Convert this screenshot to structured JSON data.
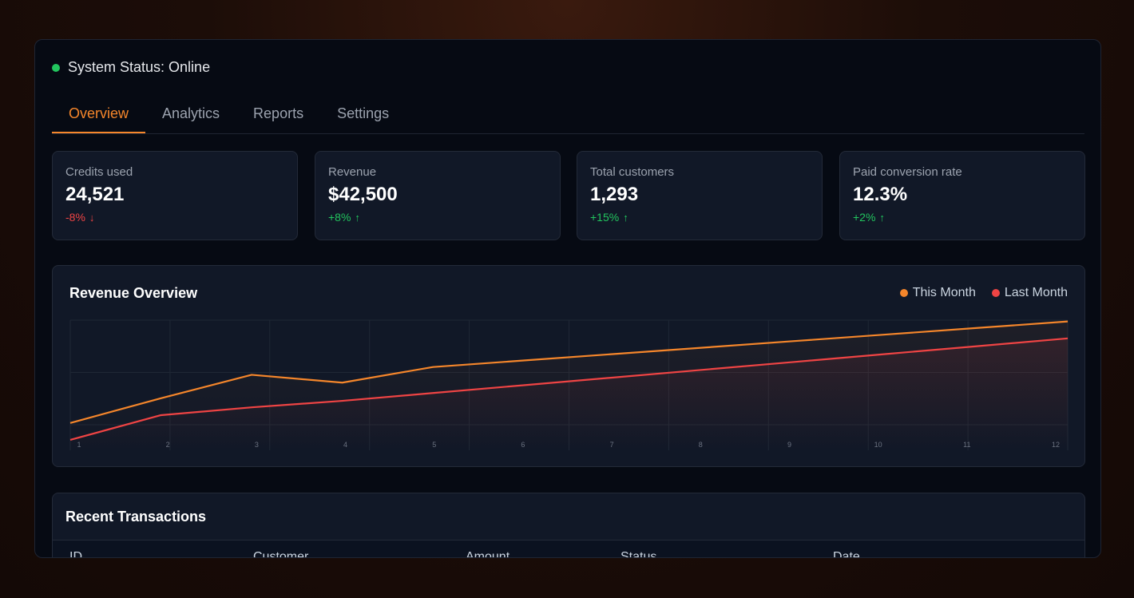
{
  "status": {
    "text": "System Status: Online",
    "color": "#22c55e"
  },
  "tabs": [
    {
      "label": "Overview",
      "active": true
    },
    {
      "label": "Analytics",
      "active": false
    },
    {
      "label": "Reports",
      "active": false
    },
    {
      "label": "Settings",
      "active": false
    }
  ],
  "cards": [
    {
      "label": "Credits used",
      "value": "24,521",
      "delta": "-8%",
      "direction": "down"
    },
    {
      "label": "Revenue",
      "value": "$42,500",
      "delta": "+8%",
      "direction": "up"
    },
    {
      "label": "Total customers",
      "value": "1,293",
      "delta": "+15%",
      "direction": "up"
    },
    {
      "label": "Paid conversion rate",
      "value": "12.3%",
      "delta": "+2%",
      "direction": "up"
    }
  ],
  "chart": {
    "title": "Revenue Overview"
  },
  "chart_data": {
    "type": "line",
    "title": "Revenue Overview",
    "x": [
      1,
      2,
      3,
      4,
      5,
      6,
      7,
      8,
      9,
      10,
      11,
      12
    ],
    "ylim": [
      0,
      100
    ],
    "grid": true,
    "legend": "top-right",
    "series": [
      {
        "name": "This Month",
        "color": "#f5862b",
        "values": [
          21,
          40,
          58,
          52,
          64,
          69,
          74,
          79,
          84,
          89,
          94,
          99
        ]
      },
      {
        "name": "Last Month",
        "color": "#ef4444",
        "values": [
          8,
          27,
          33,
          38,
          44,
          50,
          56,
          62,
          68,
          74,
          80,
          86
        ]
      }
    ]
  },
  "transactions": {
    "title": "Recent Transactions",
    "columns": [
      "ID",
      "Customer",
      "Amount",
      "Status",
      "Date"
    ]
  }
}
